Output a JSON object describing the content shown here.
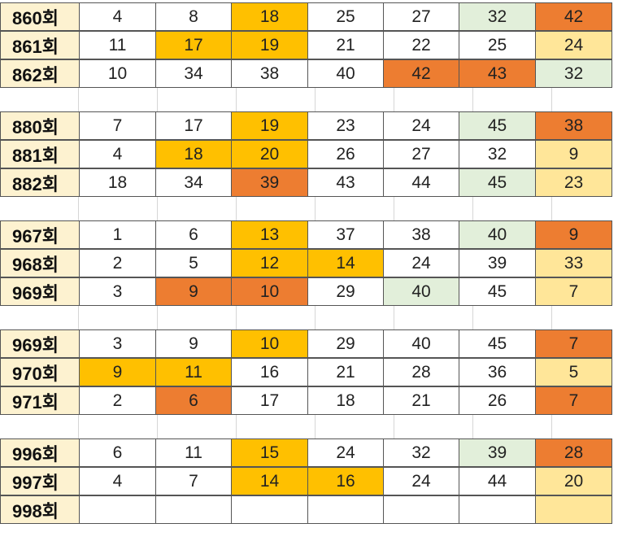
{
  "colors": {
    "none": "#ffffff",
    "yellow": "#ffc000",
    "orange": "#ed7d31",
    "green": "#e2efda",
    "cream": "#ffe699",
    "label": "#fdf2d0"
  },
  "groups": [
    {
      "rows": [
        {
          "round": "860회",
          "nums": [
            "4",
            "8",
            "18",
            "25",
            "27",
            "32",
            "42"
          ],
          "fills": [
            "none",
            "none",
            "yellow",
            "none",
            "none",
            "green",
            "orange"
          ]
        },
        {
          "round": "861회",
          "nums": [
            "11",
            "17",
            "19",
            "21",
            "22",
            "25",
            "24"
          ],
          "fills": [
            "none",
            "yellow",
            "yellow",
            "none",
            "none",
            "none",
            "cream"
          ]
        },
        {
          "round": "862회",
          "nums": [
            "10",
            "34",
            "38",
            "40",
            "42",
            "43",
            "32"
          ],
          "fills": [
            "none",
            "none",
            "none",
            "none",
            "orange",
            "orange",
            "green"
          ]
        }
      ]
    },
    {
      "rows": [
        {
          "round": "880회",
          "nums": [
            "7",
            "17",
            "19",
            "23",
            "24",
            "45",
            "38"
          ],
          "fills": [
            "none",
            "none",
            "yellow",
            "none",
            "none",
            "green",
            "orange"
          ]
        },
        {
          "round": "881회",
          "nums": [
            "4",
            "18",
            "20",
            "26",
            "27",
            "32",
            "9"
          ],
          "fills": [
            "none",
            "yellow",
            "yellow",
            "none",
            "none",
            "none",
            "cream"
          ]
        },
        {
          "round": "882회",
          "nums": [
            "18",
            "34",
            "39",
            "43",
            "44",
            "45",
            "23"
          ],
          "fills": [
            "none",
            "none",
            "orange",
            "none",
            "none",
            "green",
            "cream"
          ]
        }
      ]
    },
    {
      "rows": [
        {
          "round": "967회",
          "nums": [
            "1",
            "6",
            "13",
            "37",
            "38",
            "40",
            "9"
          ],
          "fills": [
            "none",
            "none",
            "yellow",
            "none",
            "none",
            "green",
            "orange"
          ]
        },
        {
          "round": "968회",
          "nums": [
            "2",
            "5",
            "12",
            "14",
            "24",
            "39",
            "33"
          ],
          "fills": [
            "none",
            "none",
            "yellow",
            "yellow",
            "none",
            "none",
            "cream"
          ]
        },
        {
          "round": "969회",
          "nums": [
            "3",
            "9",
            "10",
            "29",
            "40",
            "45",
            "7"
          ],
          "fills": [
            "none",
            "orange",
            "orange",
            "none",
            "green",
            "none",
            "cream"
          ]
        }
      ]
    },
    {
      "rows": [
        {
          "round": "969회",
          "nums": [
            "3",
            "9",
            "10",
            "29",
            "40",
            "45",
            "7"
          ],
          "fills": [
            "none",
            "none",
            "yellow",
            "none",
            "none",
            "none",
            "orange"
          ]
        },
        {
          "round": "970회",
          "nums": [
            "9",
            "11",
            "16",
            "21",
            "28",
            "36",
            "5"
          ],
          "fills": [
            "yellow",
            "yellow",
            "none",
            "none",
            "none",
            "none",
            "cream"
          ]
        },
        {
          "round": "971회",
          "nums": [
            "2",
            "6",
            "17",
            "18",
            "21",
            "26",
            "7"
          ],
          "fills": [
            "none",
            "orange",
            "none",
            "none",
            "none",
            "none",
            "orange"
          ]
        }
      ]
    },
    {
      "rows": [
        {
          "round": "996회",
          "nums": [
            "6",
            "11",
            "15",
            "24",
            "32",
            "39",
            "28"
          ],
          "fills": [
            "none",
            "none",
            "yellow",
            "none",
            "none",
            "green",
            "orange"
          ]
        },
        {
          "round": "997회",
          "nums": [
            "4",
            "7",
            "14",
            "16",
            "24",
            "44",
            "20"
          ],
          "fills": [
            "none",
            "none",
            "yellow",
            "yellow",
            "none",
            "none",
            "cream"
          ]
        },
        {
          "round": "998회",
          "nums": [
            "",
            "",
            "",
            "",
            "",
            "",
            ""
          ],
          "fills": [
            "none",
            "none",
            "none",
            "none",
            "none",
            "none",
            "cream"
          ]
        }
      ]
    }
  ]
}
